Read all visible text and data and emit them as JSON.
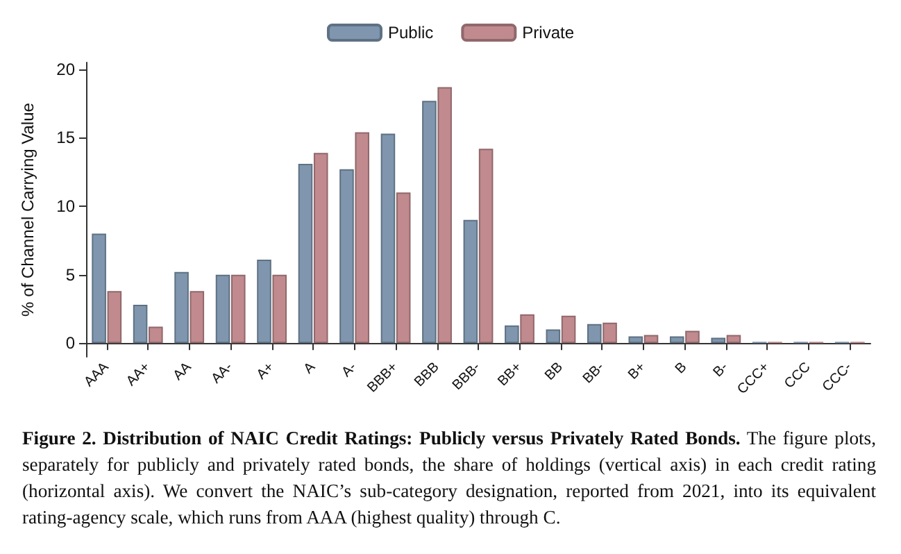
{
  "chart_data": {
    "type": "bar",
    "title": "Figure 2. Distribution of NAIC Credit Ratings: Publicly versus Privately Rated Bonds.",
    "annotations": [
      "The figure plots, separately for publicly and privately rated bonds, the share of holdings (vertical axis) in each credit rating (horizontal axis). We convert the NAIC’s sub-category designation, reported from 2021, into its equivalent rating-agency scale, which runs from AAA (highest quality) through C."
    ],
    "ylabel": "% of Channel Carrying Value",
    "categories": [
      "AAA",
      "AA+",
      "AA",
      "AA-",
      "A+",
      "A",
      "A-",
      "BBB+",
      "BBB",
      "BBB-",
      "BB+",
      "BB",
      "BB-",
      "B+",
      "B",
      "B-",
      "CCC+",
      "CCC",
      "CCC-"
    ],
    "series": [
      {
        "name": "Public",
        "color": "#7f96ae",
        "values": [
          8.0,
          2.8,
          5.2,
          5.0,
          6.1,
          13.1,
          12.7,
          15.3,
          17.7,
          9.0,
          1.3,
          1.0,
          1.4,
          0.5,
          0.5,
          0.4,
          0.1,
          0.1,
          0.1
        ]
      },
      {
        "name": "Private",
        "color": "#c08a8e",
        "values": [
          3.8,
          1.2,
          3.8,
          5.0,
          5.0,
          13.9,
          15.4,
          11.0,
          18.7,
          14.2,
          2.1,
          2.0,
          1.5,
          0.6,
          0.9,
          0.6,
          0.1,
          0.1,
          0.1
        ]
      }
    ],
    "ylim": [
      -1,
      20.5
    ],
    "yticks": [
      0,
      5,
      10,
      15,
      20
    ],
    "grid": false,
    "legend": "top"
  }
}
